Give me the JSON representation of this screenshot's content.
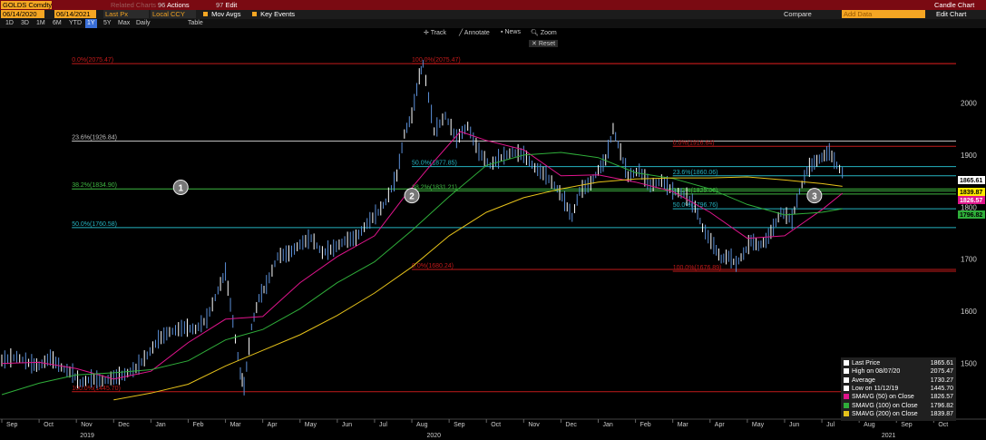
{
  "header": {
    "ticker": "GOLDS Comdty",
    "doc_label": "Related Charts",
    "actions": "Actions",
    "edit": "Edit",
    "edit_num": "97",
    "actions_num": "96",
    "chart_title": "Candle Chart"
  },
  "toolbar": {
    "start_date": "06/14/2020",
    "end_date": "06/14/2021",
    "price_field": "Last Px",
    "currency": "Local CCY",
    "mov_avgs": "Mov Avgs",
    "key_events": "Key Events",
    "compare": "Compare",
    "add_data": "Add Data",
    "edit_chart": "Edit Chart",
    "periods": [
      "1D",
      "3D",
      "1M",
      "6M",
      "YTD",
      "1Y",
      "5Y",
      "Max",
      "Daily",
      "Table"
    ],
    "selected_period": "1Y",
    "track": "Track",
    "annotate": "Annotate",
    "news": "News",
    "zoom": "Zoom",
    "reset": "Reset"
  },
  "colors": {
    "price": "#5b8fd8",
    "price_light": "#ffffff",
    "sma50": "#e0148c",
    "sma100": "#2fae3a",
    "sma200": "#e6c21a",
    "fib_red": "#c21a1a",
    "fib_white": "#bdbdbd",
    "fib_green": "#3fb842",
    "fib_cyan": "#25b3c0"
  },
  "chart_data": {
    "type": "line",
    "title": "GOLDS Comdty",
    "ylim": [
      1400,
      2100
    ],
    "y_ticks": [
      1500,
      1600,
      1700,
      1800,
      1900,
      2000
    ],
    "x_ticks": [
      "Sep",
      "Oct",
      "Nov",
      "Dec",
      "Jan",
      "Feb",
      "Mar",
      "Apr",
      "May",
      "Jun",
      "Jul",
      "Aug",
      "Sep",
      "Oct",
      "Nov",
      "Dec",
      "Jan",
      "Feb",
      "Mar",
      "Apr",
      "May",
      "Jun",
      "Jul",
      "Aug",
      "Sep",
      "Oct"
    ],
    "x_years": [
      "2019",
      "2020",
      "2021"
    ],
    "x_range_months": [
      0,
      25.6
    ],
    "series": [
      {
        "name": "Last Price",
        "points": [
          [
            0,
            1505
          ],
          [
            0.4,
            1512
          ],
          [
            0.8,
            1498
          ],
          [
            1,
            1495
          ],
          [
            1.3,
            1510
          ],
          [
            1.6,
            1492
          ],
          [
            1.9,
            1480
          ],
          [
            2.1,
            1462
          ],
          [
            2.4,
            1470
          ],
          [
            2.7,
            1466
          ],
          [
            3,
            1472
          ],
          [
            3.3,
            1478
          ],
          [
            3.6,
            1490
          ],
          [
            3.9,
            1515
          ],
          [
            4.2,
            1545
          ],
          [
            4.5,
            1560
          ],
          [
            4.9,
            1568
          ],
          [
            5.2,
            1565
          ],
          [
            5.5,
            1585
          ],
          [
            5.8,
            1640
          ],
          [
            6.0,
            1675
          ],
          [
            6.2,
            1580
          ],
          [
            6.4,
            1480
          ],
          [
            6.5,
            1455
          ],
          [
            6.7,
            1570
          ],
          [
            6.9,
            1625
          ],
          [
            7.1,
            1650
          ],
          [
            7.4,
            1705
          ],
          [
            7.7,
            1710
          ],
          [
            8.0,
            1728
          ],
          [
            8.3,
            1740
          ],
          [
            8.6,
            1712
          ],
          [
            8.9,
            1720
          ],
          [
            9.2,
            1735
          ],
          [
            9.5,
            1740
          ],
          [
            9.8,
            1768
          ],
          [
            10.1,
            1790
          ],
          [
            10.3,
            1810
          ],
          [
            10.6,
            1860
          ],
          [
            10.8,
            1940
          ],
          [
            11.0,
            1975
          ],
          [
            11.2,
            2050
          ],
          [
            11.3,
            2075
          ],
          [
            11.45,
            2010
          ],
          [
            11.6,
            1945
          ],
          [
            11.9,
            1975
          ],
          [
            12.2,
            1930
          ],
          [
            12.5,
            1955
          ],
          [
            12.8,
            1905
          ],
          [
            13.1,
            1880
          ],
          [
            13.4,
            1895
          ],
          [
            13.7,
            1905
          ],
          [
            14.0,
            1900
          ],
          [
            14.3,
            1875
          ],
          [
            14.6,
            1860
          ],
          [
            14.9,
            1835
          ],
          [
            15.1,
            1810
          ],
          [
            15.3,
            1780
          ],
          [
            15.5,
            1830
          ],
          [
            15.8,
            1845
          ],
          [
            16.0,
            1870
          ],
          [
            16.2,
            1890
          ],
          [
            16.4,
            1950
          ],
          [
            16.6,
            1905
          ],
          [
            16.8,
            1858
          ],
          [
            17.1,
            1870
          ],
          [
            17.4,
            1840
          ],
          [
            17.7,
            1850
          ],
          [
            18.0,
            1830
          ],
          [
            18.3,
            1825
          ],
          [
            18.6,
            1800
          ],
          [
            18.8,
            1760
          ],
          [
            19.1,
            1725
          ],
          [
            19.3,
            1700
          ],
          [
            19.5,
            1705
          ],
          [
            19.7,
            1690
          ],
          [
            19.9,
            1710
          ],
          [
            20.1,
            1735
          ],
          [
            20.3,
            1725
          ],
          [
            20.5,
            1735
          ],
          [
            20.7,
            1760
          ],
          [
            20.9,
            1790
          ],
          [
            21.2,
            1775
          ],
          [
            21.4,
            1830
          ],
          [
            21.6,
            1870
          ],
          [
            21.8,
            1885
          ],
          [
            22.0,
            1895
          ],
          [
            22.2,
            1905
          ],
          [
            22.4,
            1880
          ],
          [
            22.55,
            1865.61
          ]
        ]
      },
      {
        "name": "SMAVG (50) on Close",
        "points": [
          [
            0,
            1500
          ],
          [
            1,
            1502
          ],
          [
            2,
            1490
          ],
          [
            3,
            1470
          ],
          [
            4,
            1485
          ],
          [
            5,
            1540
          ],
          [
            6,
            1585
          ],
          [
            7,
            1590
          ],
          [
            8,
            1655
          ],
          [
            9,
            1705
          ],
          [
            10,
            1745
          ],
          [
            10.8,
            1820
          ],
          [
            11.5,
            1880
          ],
          [
            12.3,
            1945
          ],
          [
            13,
            1928
          ],
          [
            14,
            1910
          ],
          [
            15,
            1860
          ],
          [
            16,
            1862
          ],
          [
            17,
            1848
          ],
          [
            18,
            1830
          ],
          [
            19,
            1790
          ],
          [
            20,
            1740
          ],
          [
            21,
            1745
          ],
          [
            22,
            1795
          ],
          [
            22.55,
            1826.57
          ]
        ]
      },
      {
        "name": "SMAVG (100) on Close",
        "points": [
          [
            0,
            1440
          ],
          [
            1,
            1462
          ],
          [
            2,
            1478
          ],
          [
            3,
            1482
          ],
          [
            4,
            1488
          ],
          [
            5,
            1505
          ],
          [
            6,
            1545
          ],
          [
            7,
            1565
          ],
          [
            8,
            1605
          ],
          [
            9,
            1655
          ],
          [
            10,
            1695
          ],
          [
            11,
            1755
          ],
          [
            12,
            1820
          ],
          [
            13,
            1880
          ],
          [
            14,
            1900
          ],
          [
            15,
            1905
          ],
          [
            16,
            1895
          ],
          [
            17,
            1866
          ],
          [
            18,
            1855
          ],
          [
            19,
            1835
          ],
          [
            20,
            1805
          ],
          [
            21,
            1785
          ],
          [
            22,
            1790
          ],
          [
            22.55,
            1796.82
          ]
        ]
      },
      {
        "name": "SMAVG (200) on Close",
        "points": [
          [
            3,
            1430
          ],
          [
            4,
            1443
          ],
          [
            5,
            1460
          ],
          [
            6,
            1495
          ],
          [
            7,
            1525
          ],
          [
            8,
            1555
          ],
          [
            9,
            1592
          ],
          [
            10,
            1635
          ],
          [
            11,
            1685
          ],
          [
            12,
            1745
          ],
          [
            13,
            1790
          ],
          [
            14,
            1818
          ],
          [
            15,
            1835
          ],
          [
            16,
            1848
          ],
          [
            17,
            1854
          ],
          [
            18,
            1856
          ],
          [
            19,
            1856
          ],
          [
            20,
            1858
          ],
          [
            21,
            1852
          ],
          [
            22,
            1845
          ],
          [
            22.55,
            1839.87
          ]
        ]
      }
    ],
    "fib_levels": [
      {
        "label": "0.0%(2075.47)",
        "y": 2075.47,
        "color": "red",
        "x0": 2.0,
        "x1": 25.6
      },
      {
        "label": "100.0%(2075.47)",
        "y": 2075.47,
        "color": "red",
        "x0": 11.0,
        "x1": 25.6
      },
      {
        "label": "23.6%(1926.84)",
        "y": 1926.84,
        "color": "white",
        "x0": 2.0,
        "x1": 25.6
      },
      {
        "label": "38.2%(1834.90)",
        "y": 1834.9,
        "color": "green",
        "x0": 2.0,
        "x1": 25.6
      },
      {
        "label": "50.0%(1760.58)",
        "y": 1760.58,
        "color": "cyan",
        "x0": 2.0,
        "x1": 25.6
      },
      {
        "label": "100.0%(1445.70)",
        "y": 1445.7,
        "color": "red",
        "x0": 2.0,
        "x1": 25.6
      },
      {
        "label": "50.0%(1877.85)",
        "y": 1877.85,
        "color": "cyan",
        "x0": 11.0,
        "x1": 25.6
      },
      {
        "label": "38.2%(1831.21)",
        "y": 1831.21,
        "color": "green",
        "x0": 11.0,
        "x1": 25.6
      },
      {
        "label": "0.0%(1680.24)",
        "y": 1680.24,
        "color": "red",
        "x0": 11.0,
        "x1": 25.6
      },
      {
        "label": "0.0%(1916.64)",
        "y": 1916.64,
        "color": "red",
        "x0": 18.0,
        "x1": 25.6
      },
      {
        "label": "23.6%(1860.06)",
        "y": 1860.06,
        "color": "cyan",
        "x0": 18.0,
        "x1": 25.6
      },
      {
        "label": "38.2%(1825.06)",
        "y": 1825.06,
        "color": "green",
        "x0": 18.0,
        "x1": 25.6
      },
      {
        "label": "50.0%(1796.76)",
        "y": 1796.76,
        "color": "cyan",
        "x0": 18.0,
        "x1": 25.6
      },
      {
        "label": "100.0%(1676.89)",
        "y": 1676.89,
        "color": "red",
        "x0": 18.0,
        "x1": 25.6
      }
    ],
    "markers": [
      {
        "label": "1",
        "x": 4.8,
        "y": 1838
      },
      {
        "label": "2",
        "x": 11.0,
        "y": 1822
      },
      {
        "label": "3",
        "x": 21.8,
        "y": 1822
      }
    ],
    "price_tags": [
      {
        "value": "1865.61",
        "color": "white"
      },
      {
        "value": "1839.87",
        "color": "yellow"
      },
      {
        "value": "1826.57",
        "color": "magenta"
      },
      {
        "value": "1796.82",
        "color": "green"
      }
    ],
    "legend": [
      {
        "label": "Last Price",
        "value": "1865.61",
        "color": "#ffffff"
      },
      {
        "label": "High on 08/07/20",
        "value": "2075.47",
        "color": "#ffffff"
      },
      {
        "label": "Average",
        "value": "1730.27",
        "color": "#ffffff"
      },
      {
        "label": "Low on 11/12/19",
        "value": "1445.70",
        "color": "#ffffff"
      },
      {
        "label": "SMAVG (50)  on Close",
        "value": "1826.57",
        "color": "#e0148c"
      },
      {
        "label": "SMAVG (100)  on Close",
        "value": "1796.82",
        "color": "#2fae3a"
      },
      {
        "label": "SMAVG (200)  on Close",
        "value": "1839.87",
        "color": "#e6c21a"
      }
    ]
  }
}
